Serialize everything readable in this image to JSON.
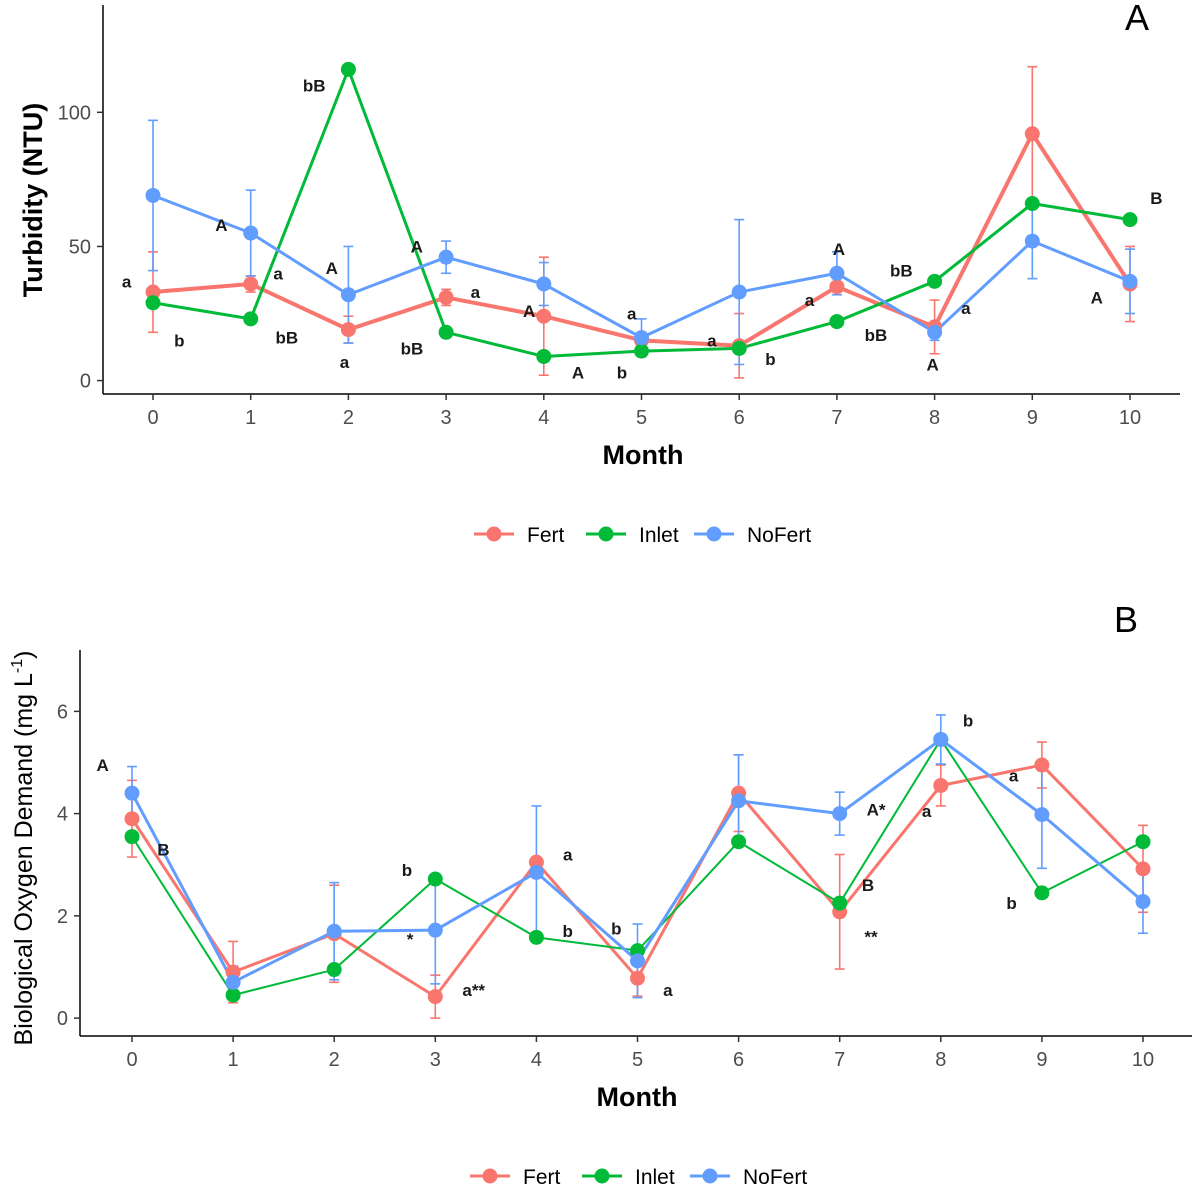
{
  "colors": {
    "Fert": "#F8766D",
    "Inlet": "#00BA38",
    "NoFert": "#619CFF"
  },
  "chart_data": [
    {
      "panel_label": "A",
      "type": "line",
      "xlabel": "Month",
      "ylabel": "Turbidity (NTU)",
      "ylabel_sup": "",
      "ylabel_suffix": "",
      "xlim": [
        -0.5,
        10.5
      ],
      "ylim": [
        -5,
        140
      ],
      "x_ticks": [
        0,
        1,
        2,
        3,
        4,
        5,
        6,
        7,
        8,
        9,
        10
      ],
      "y_ticks": [
        0,
        50,
        100
      ],
      "x": [
        0,
        1,
        2,
        3,
        4,
        5,
        6,
        7,
        8,
        9,
        10
      ],
      "series": [
        {
          "name": "Fert",
          "values": [
            33,
            36,
            19,
            31,
            24,
            15,
            13,
            35,
            20,
            92,
            36
          ],
          "err": [
            15,
            3,
            5,
            3,
            22,
            3,
            12,
            3,
            10,
            25,
            14
          ]
        },
        {
          "name": "Inlet",
          "values": [
            29,
            23,
            116,
            18,
            9,
            11,
            12,
            22,
            37,
            66,
            60
          ],
          "err": [
            0,
            0,
            0,
            0,
            0,
            0,
            0,
            0,
            0,
            0,
            0
          ]
        },
        {
          "name": "NoFert",
          "values": [
            69,
            55,
            32,
            46,
            36,
            16,
            33,
            40,
            18,
            52,
            37
          ],
          "err": [
            28,
            16,
            18,
            6,
            8,
            7,
            27,
            8,
            3,
            14,
            12
          ]
        }
      ],
      "annotations": [
        {
          "text": "a",
          "x": -0.27,
          "y": 37
        },
        {
          "text": "b",
          "x": 0.27,
          "y": 15
        },
        {
          "text": "A",
          "x": 0.7,
          "y": 58
        },
        {
          "text": "a",
          "x": 1.28,
          "y": 40
        },
        {
          "text": "bB",
          "x": 1.37,
          "y": 16
        },
        {
          "text": "bB",
          "x": 1.65,
          "y": 110
        },
        {
          "text": "A",
          "x": 1.83,
          "y": 42
        },
        {
          "text": "a",
          "x": 1.96,
          "y": 7
        },
        {
          "text": "A",
          "x": 2.7,
          "y": 50
        },
        {
          "text": "bB",
          "x": 2.65,
          "y": 12
        },
        {
          "text": "a",
          "x": 3.3,
          "y": 33
        },
        {
          "text": "A",
          "x": 3.85,
          "y": 26
        },
        {
          "text": "A",
          "x": 4.35,
          "y": 3
        },
        {
          "text": "a",
          "x": 4.9,
          "y": 25
        },
        {
          "text": "b",
          "x": 4.8,
          "y": 3
        },
        {
          "text": "a",
          "x": 5.72,
          "y": 15
        },
        {
          "text": "b",
          "x": 6.32,
          "y": 8
        },
        {
          "text": "a",
          "x": 6.72,
          "y": 30
        },
        {
          "text": "A",
          "x": 7.02,
          "y": 49
        },
        {
          "text": "bB",
          "x": 7.4,
          "y": 17
        },
        {
          "text": "bB",
          "x": 7.66,
          "y": 41
        },
        {
          "text": "a",
          "x": 8.32,
          "y": 27
        },
        {
          "text": "A",
          "x": 7.98,
          "y": 6
        },
        {
          "text": "A",
          "x": 9.66,
          "y": 31
        },
        {
          "text": "B",
          "x": 10.27,
          "y": 68
        }
      ]
    },
    {
      "panel_label": "B",
      "type": "line",
      "xlabel": "Month",
      "ylabel": "Biological Oxygen Demand (mg L",
      "ylabel_sup": "-1",
      "ylabel_suffix": ")",
      "xlim": [
        -0.5,
        10.5
      ],
      "ylim": [
        -0.35,
        7.2
      ],
      "x_ticks": [
        0,
        1,
        2,
        3,
        4,
        5,
        6,
        7,
        8,
        9,
        10
      ],
      "y_ticks": [
        0,
        2,
        4,
        6
      ],
      "x": [
        0,
        1,
        2,
        3,
        4,
        5,
        6,
        7,
        8,
        9,
        10
      ],
      "series": [
        {
          "name": "Fert",
          "values": [
            3.9,
            0.9,
            1.65,
            0.42,
            3.05,
            0.78,
            4.4,
            2.08,
            4.55,
            4.95,
            2.92
          ],
          "err": [
            0.75,
            0.6,
            0.95,
            0.42,
            0,
            0.35,
            0.75,
            1.12,
            0.4,
            0.45,
            0.85
          ]
        },
        {
          "name": "Inlet",
          "values": [
            3.55,
            0.45,
            0.95,
            2.72,
            1.58,
            1.32,
            3.45,
            2.25,
            5.45,
            2.45,
            3.45
          ],
          "err": [
            0,
            0,
            0,
            0,
            0,
            0,
            0,
            0,
            0,
            0,
            0
          ]
        },
        {
          "name": "NoFert",
          "values": [
            4.4,
            0.7,
            1.7,
            1.72,
            2.85,
            1.12,
            4.25,
            4.0,
            5.45,
            3.98,
            2.28
          ],
          "err": [
            0.52,
            0.32,
            0.95,
            1.05,
            1.3,
            0.72,
            0.9,
            0.42,
            0.48,
            1.05,
            0.62
          ]
        }
      ],
      "annotations": [
        {
          "text": "A",
          "x": -0.29,
          "y": 4.95
        },
        {
          "text": "B",
          "x": 0.31,
          "y": 3.3
        },
        {
          "text": "b",
          "x": 2.72,
          "y": 2.9
        },
        {
          "text": "*",
          "x": 2.75,
          "y": 1.55
        },
        {
          "text": "a**",
          "x": 3.38,
          "y": 0.55
        },
        {
          "text": "a",
          "x": 4.31,
          "y": 3.2
        },
        {
          "text": "b",
          "x": 4.31,
          "y": 1.7
        },
        {
          "text": "b",
          "x": 4.79,
          "y": 1.75
        },
        {
          "text": "a",
          "x": 5.3,
          "y": 0.55
        },
        {
          "text": "A*",
          "x": 7.36,
          "y": 4.08
        },
        {
          "text": "B",
          "x": 7.28,
          "y": 2.6
        },
        {
          "text": "**",
          "x": 7.31,
          "y": 1.6
        },
        {
          "text": "b",
          "x": 8.27,
          "y": 5.82
        },
        {
          "text": "a",
          "x": 7.86,
          "y": 4.05
        },
        {
          "text": "a",
          "x": 8.72,
          "y": 4.75
        },
        {
          "text": "b",
          "x": 8.7,
          "y": 2.25
        }
      ]
    }
  ],
  "legend": {
    "items": [
      {
        "name": "Fert"
      },
      {
        "name": "Inlet"
      },
      {
        "name": "NoFert"
      }
    ]
  }
}
